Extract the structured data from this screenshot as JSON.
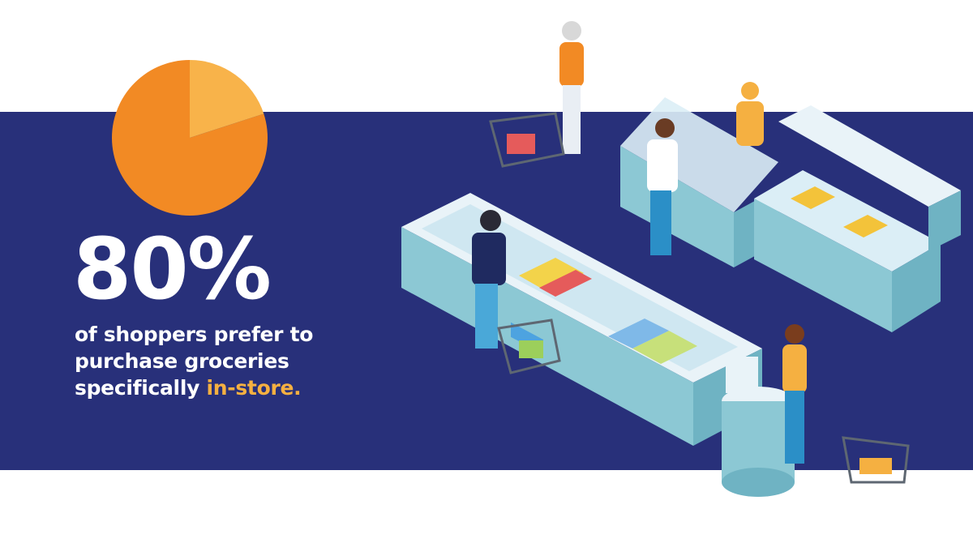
{
  "chart_data": {
    "type": "pie",
    "slices": [
      {
        "value": 80,
        "color": "#f28a24"
      },
      {
        "value": 20,
        "color": "#f8b34a"
      }
    ]
  },
  "headline": {
    "stat": "80%"
  },
  "subline": {
    "line1": "of shoppers prefer to",
    "line2": "purchase groceries",
    "line3_prefix": "specifically ",
    "line3_emphasis": "in-store."
  },
  "colors": {
    "band": "#28307a",
    "accent": "#f5b041"
  }
}
